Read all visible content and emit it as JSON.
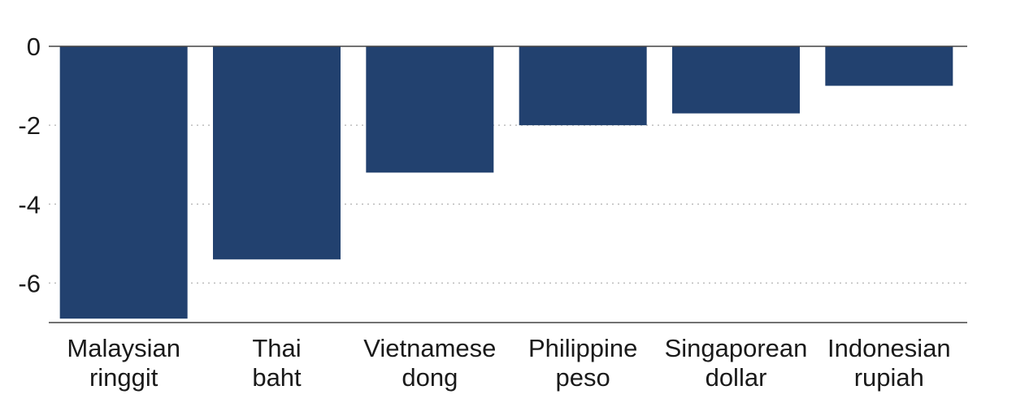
{
  "chart_data": {
    "type": "bar",
    "title": "",
    "xlabel": "",
    "ylabel": "",
    "categories": [
      [
        "Malaysian",
        "ringgit"
      ],
      [
        "Thai",
        "baht"
      ],
      [
        "Vietnamese",
        "dong"
      ],
      [
        "Philippine",
        "peso"
      ],
      [
        "Singaporean",
        "dollar"
      ],
      [
        "Indonesian",
        "rupiah"
      ]
    ],
    "values": [
      -6.9,
      -5.4,
      -3.2,
      -2.0,
      -1.7,
      -1.0
    ],
    "ylim": [
      -7,
      0
    ],
    "yticks": [
      0,
      -2,
      -4,
      -6
    ],
    "ytick_labels": [
      "0",
      "-2",
      "-4",
      "-6"
    ],
    "grid": true,
    "legend": "none",
    "colors": {
      "bar": "#22416f",
      "grid": "#bdbdbd",
      "axis": "#444444",
      "text": "#1a1a1a"
    }
  }
}
